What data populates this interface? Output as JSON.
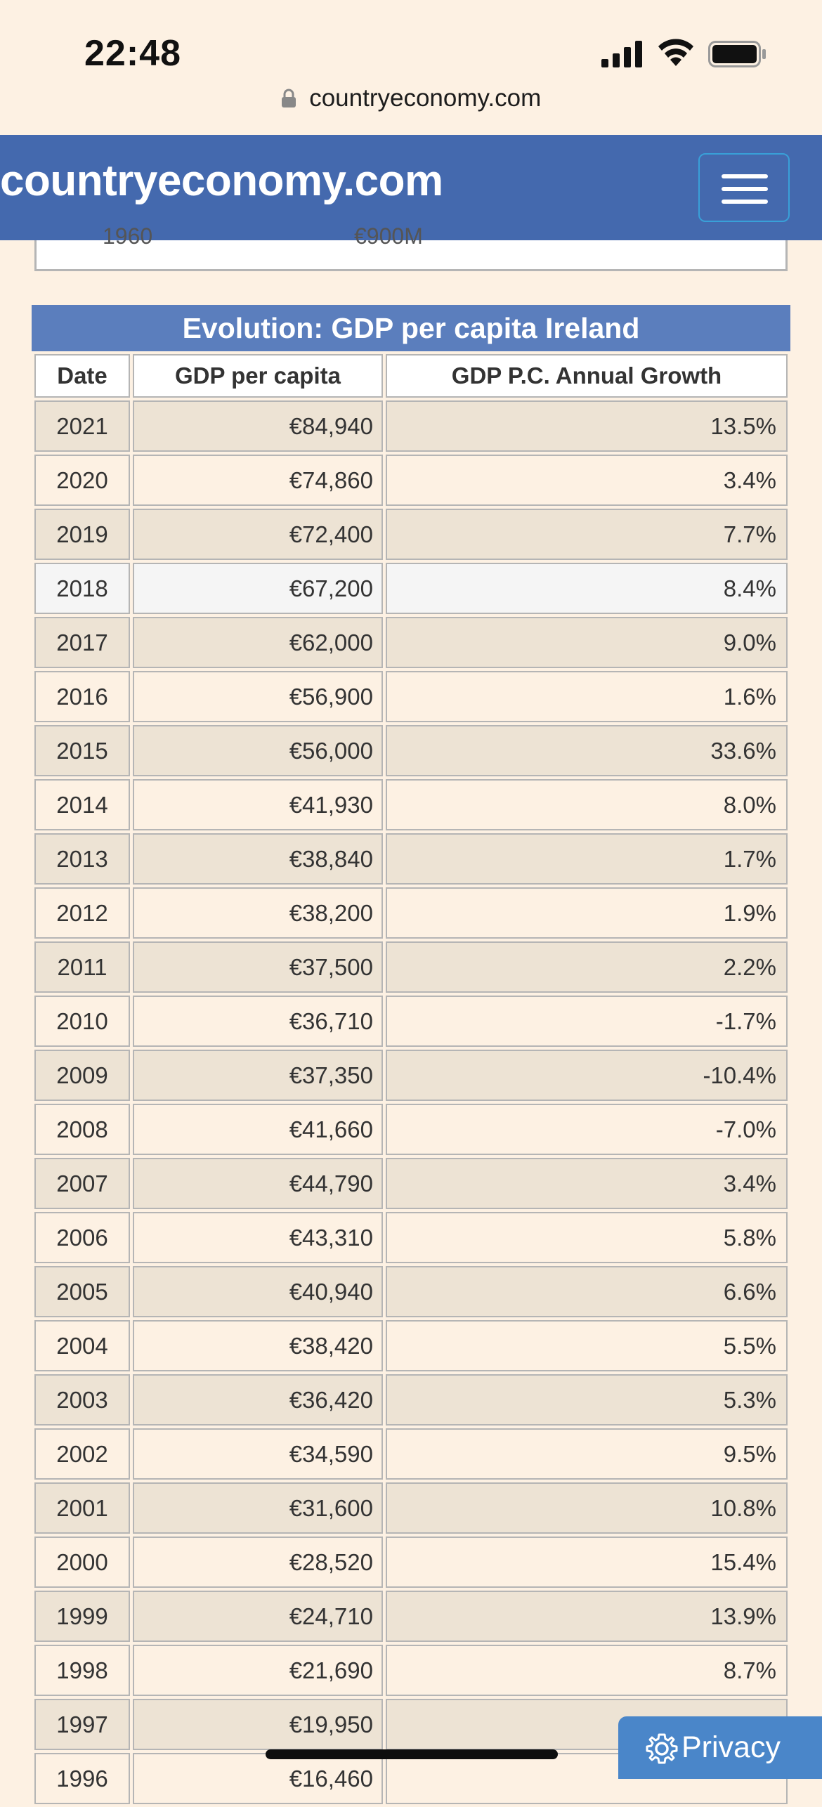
{
  "status_bar": {
    "time": "22:48"
  },
  "browser": {
    "url": "countryeconomy.com"
  },
  "site": {
    "brand": "countryeconomy.com"
  },
  "prev_table": {
    "year": "1960",
    "value": "€900M"
  },
  "table": {
    "title": "Evolution: GDP per capita Ireland",
    "headers": [
      "Date",
      "GDP per capita",
      "GDP P.C. Annual Growth"
    ],
    "rows": [
      [
        "2021",
        "€84,940",
        "13.5%"
      ],
      [
        "2020",
        "€74,860",
        "3.4%"
      ],
      [
        "2019",
        "€72,400",
        "7.7%"
      ],
      [
        "2018",
        "€67,200",
        "8.4%"
      ],
      [
        "2017",
        "€62,000",
        "9.0%"
      ],
      [
        "2016",
        "€56,900",
        "1.6%"
      ],
      [
        "2015",
        "€56,000",
        "33.6%"
      ],
      [
        "2014",
        "€41,930",
        "8.0%"
      ],
      [
        "2013",
        "€38,840",
        "1.7%"
      ],
      [
        "2012",
        "€38,200",
        "1.9%"
      ],
      [
        "2011",
        "€37,500",
        "2.2%"
      ],
      [
        "2010",
        "€36,710",
        "-1.7%"
      ],
      [
        "2009",
        "€37,350",
        "-10.4%"
      ],
      [
        "2008",
        "€41,660",
        "-7.0%"
      ],
      [
        "2007",
        "€44,790",
        "3.4%"
      ],
      [
        "2006",
        "€43,310",
        "5.8%"
      ],
      [
        "2005",
        "€40,940",
        "6.6%"
      ],
      [
        "2004",
        "€38,420",
        "5.5%"
      ],
      [
        "2003",
        "€36,420",
        "5.3%"
      ],
      [
        "2002",
        "€34,590",
        "9.5%"
      ],
      [
        "2001",
        "€31,600",
        "10.8%"
      ],
      [
        "2000",
        "€28,520",
        "15.4%"
      ],
      [
        "1999",
        "€24,710",
        "13.9%"
      ],
      [
        "1998",
        "€21,690",
        "8.7%"
      ],
      [
        "1997",
        "€19,950",
        ""
      ],
      [
        "1996",
        "€16,460",
        ""
      ]
    ]
  },
  "privacy_button": {
    "label": "Privacy"
  },
  "colors": {
    "header": "#4469ae",
    "title_bar": "#5b7ebd",
    "background": "#fdf1e3",
    "privacy": "#4a86c9"
  }
}
